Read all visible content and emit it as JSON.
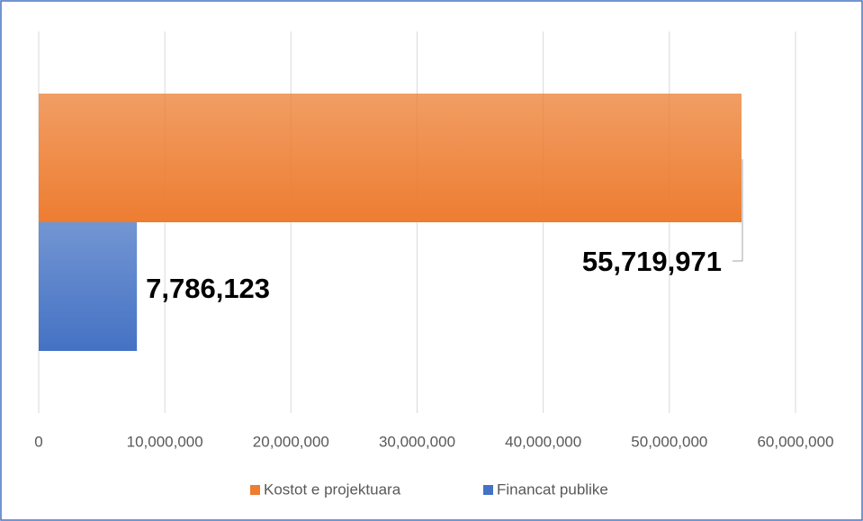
{
  "chart_data": {
    "type": "bar",
    "orientation": "horizontal",
    "categories": [
      null
    ],
    "series": [
      {
        "name": "Kostot e projektuara",
        "color": "#ed7d31",
        "values": [
          55719971
        ],
        "value_labels": [
          "55,719,971"
        ]
      },
      {
        "name": "Financat publike",
        "color": "#4472c4",
        "values": [
          7786123
        ],
        "value_labels": [
          "7,786,123"
        ]
      }
    ],
    "xlim": [
      0,
      60000000
    ],
    "xticks": [
      0,
      {
        "value": 10000000,
        "label": "10,000,000"
      },
      {
        "value": 20000000,
        "label": "20,000,000"
      },
      {
        "value": 30000000,
        "label": "30,000,000"
      },
      {
        "value": 40000000,
        "label": "40,000,000"
      },
      {
        "value": 50000000,
        "label": "50,000,000"
      },
      {
        "value": 60000000,
        "label": "60,000,000"
      }
    ],
    "grid": true,
    "legend": "bottom"
  }
}
